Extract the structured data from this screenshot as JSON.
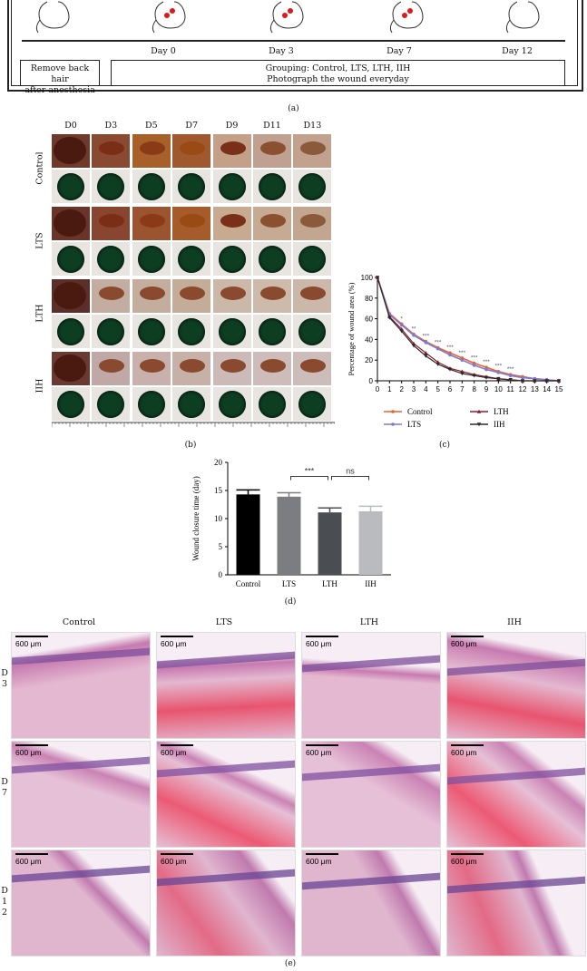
{
  "panel_a": {
    "days": [
      "Day 0",
      "Day 3",
      "Day 7",
      "Day 12"
    ],
    "box_left_line1": "Remove back hair",
    "box_left_line2": "after anesthesia",
    "box_right_line1": "Grouping: Control, LTS, LTH, IIH",
    "box_right_line2": "Photograph the wound everyday",
    "caption": "(a)"
  },
  "panel_b": {
    "columns": [
      "D0",
      "D3",
      "D5",
      "D7",
      "D9",
      "D11",
      "D13"
    ],
    "rows": [
      "Control",
      "LTS",
      "LTH",
      "IIH"
    ],
    "caption": "(b)"
  },
  "panel_c": {
    "caption": "(c)"
  },
  "panel_d": {
    "caption": "(d)"
  },
  "panel_e": {
    "columns": [
      "Control",
      "LTS",
      "LTH",
      "IIH"
    ],
    "rows": [
      [
        "D",
        "3"
      ],
      [
        "D",
        "7"
      ],
      [
        "D",
        "1",
        "2"
      ]
    ],
    "scale_label": "600 μm",
    "caption": "(e)"
  },
  "chart_data": [
    {
      "type": "line",
      "ylabel": "Percentage of wound area (%)",
      "xlabel": "",
      "x": [
        0,
        1,
        2,
        3,
        4,
        5,
        6,
        7,
        8,
        9,
        10,
        11,
        12,
        13,
        14,
        15
      ],
      "xlim": [
        0,
        15
      ],
      "ylim": [
        0,
        100
      ],
      "yticks": [
        0,
        20,
        40,
        60,
        80,
        100
      ],
      "series": [
        {
          "name": "Control",
          "color": "#e8642c",
          "marker": "circle",
          "values": [
            100,
            65,
            55,
            45,
            38,
            32,
            27,
            22,
            17,
            13,
            9,
            6,
            4,
            2,
            1,
            0
          ]
        },
        {
          "name": "LTS",
          "color": "#7a7ad8",
          "marker": "circle",
          "values": [
            100,
            64,
            54,
            44,
            37,
            31,
            25,
            20,
            15,
            11,
            8,
            5,
            3,
            2,
            1,
            0
          ]
        },
        {
          "name": "LTH",
          "color": "#8b1a2a",
          "marker": "triangle",
          "values": [
            100,
            62,
            50,
            36,
            27,
            18,
            12,
            9,
            6,
            4,
            2,
            1,
            0,
            0,
            0,
            0
          ]
        },
        {
          "name": "IIH",
          "color": "#2a2a2a",
          "marker": "triangle-down",
          "values": [
            100,
            61,
            48,
            34,
            24,
            16,
            11,
            7,
            5,
            3,
            2,
            1,
            0,
            0,
            0,
            0
          ]
        }
      ],
      "annotations": [
        "*",
        "**",
        "***",
        "***",
        "***",
        "***",
        "***",
        "***",
        "***",
        "***"
      ],
      "legend": "bottom"
    },
    {
      "type": "bar",
      "ylabel": "Wound closure time (day)",
      "categories": [
        "Control",
        "LTS",
        "LTH",
        "IIH"
      ],
      "values": [
        14.3,
        13.9,
        11.1,
        11.3
      ],
      "errors": [
        0.8,
        0.7,
        0.8,
        0.9
      ],
      "colors": [
        "#000000",
        "#7b7d80",
        "#4a4d52",
        "#b9bbbe"
      ],
      "ylim": [
        0,
        20
      ],
      "yticks": [
        0,
        5,
        10,
        15,
        20
      ],
      "significance": [
        {
          "from": "LTS",
          "to": "LTH",
          "label": "***"
        },
        {
          "from": "LTH",
          "to": "IIH",
          "label": "ns"
        }
      ]
    }
  ]
}
